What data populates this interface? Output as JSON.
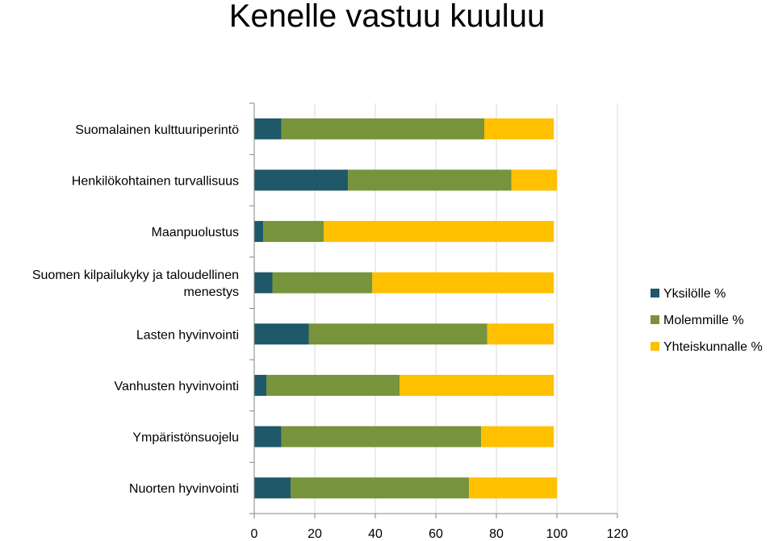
{
  "chart_data": {
    "type": "bar",
    "orientation": "horizontal",
    "stacked": true,
    "title": "Kenelle vastuu kuuluu",
    "categories": [
      "Suomalainen kulttuuriperintö",
      "Henkilökohtainen turvallisuus",
      "Maanpuolustus",
      "Suomen kilpailukyky ja taloudellinen menestys",
      "Lasten hyvinvointi",
      "Vanhusten hyvinvointi",
      "Ympäristönsuojelu",
      "Nuorten hyvinvointi"
    ],
    "series": [
      {
        "name": "Yksilölle %",
        "color": "#1F5868",
        "values": [
          9,
          31,
          3,
          6,
          18,
          4,
          9,
          12
        ]
      },
      {
        "name": "Molemmille %",
        "color": "#77933C",
        "values": [
          67,
          54,
          20,
          33,
          59,
          44,
          66,
          59
        ]
      },
      {
        "name": "Yhteiskunnalle %",
        "color": "#FFC000",
        "values": [
          23,
          15,
          76,
          60,
          22,
          51,
          24,
          29
        ]
      }
    ],
    "xlim": [
      0,
      120
    ],
    "xticks": [
      0,
      20,
      40,
      60,
      80,
      100,
      120
    ],
    "grid": true,
    "legend_position": "right"
  }
}
